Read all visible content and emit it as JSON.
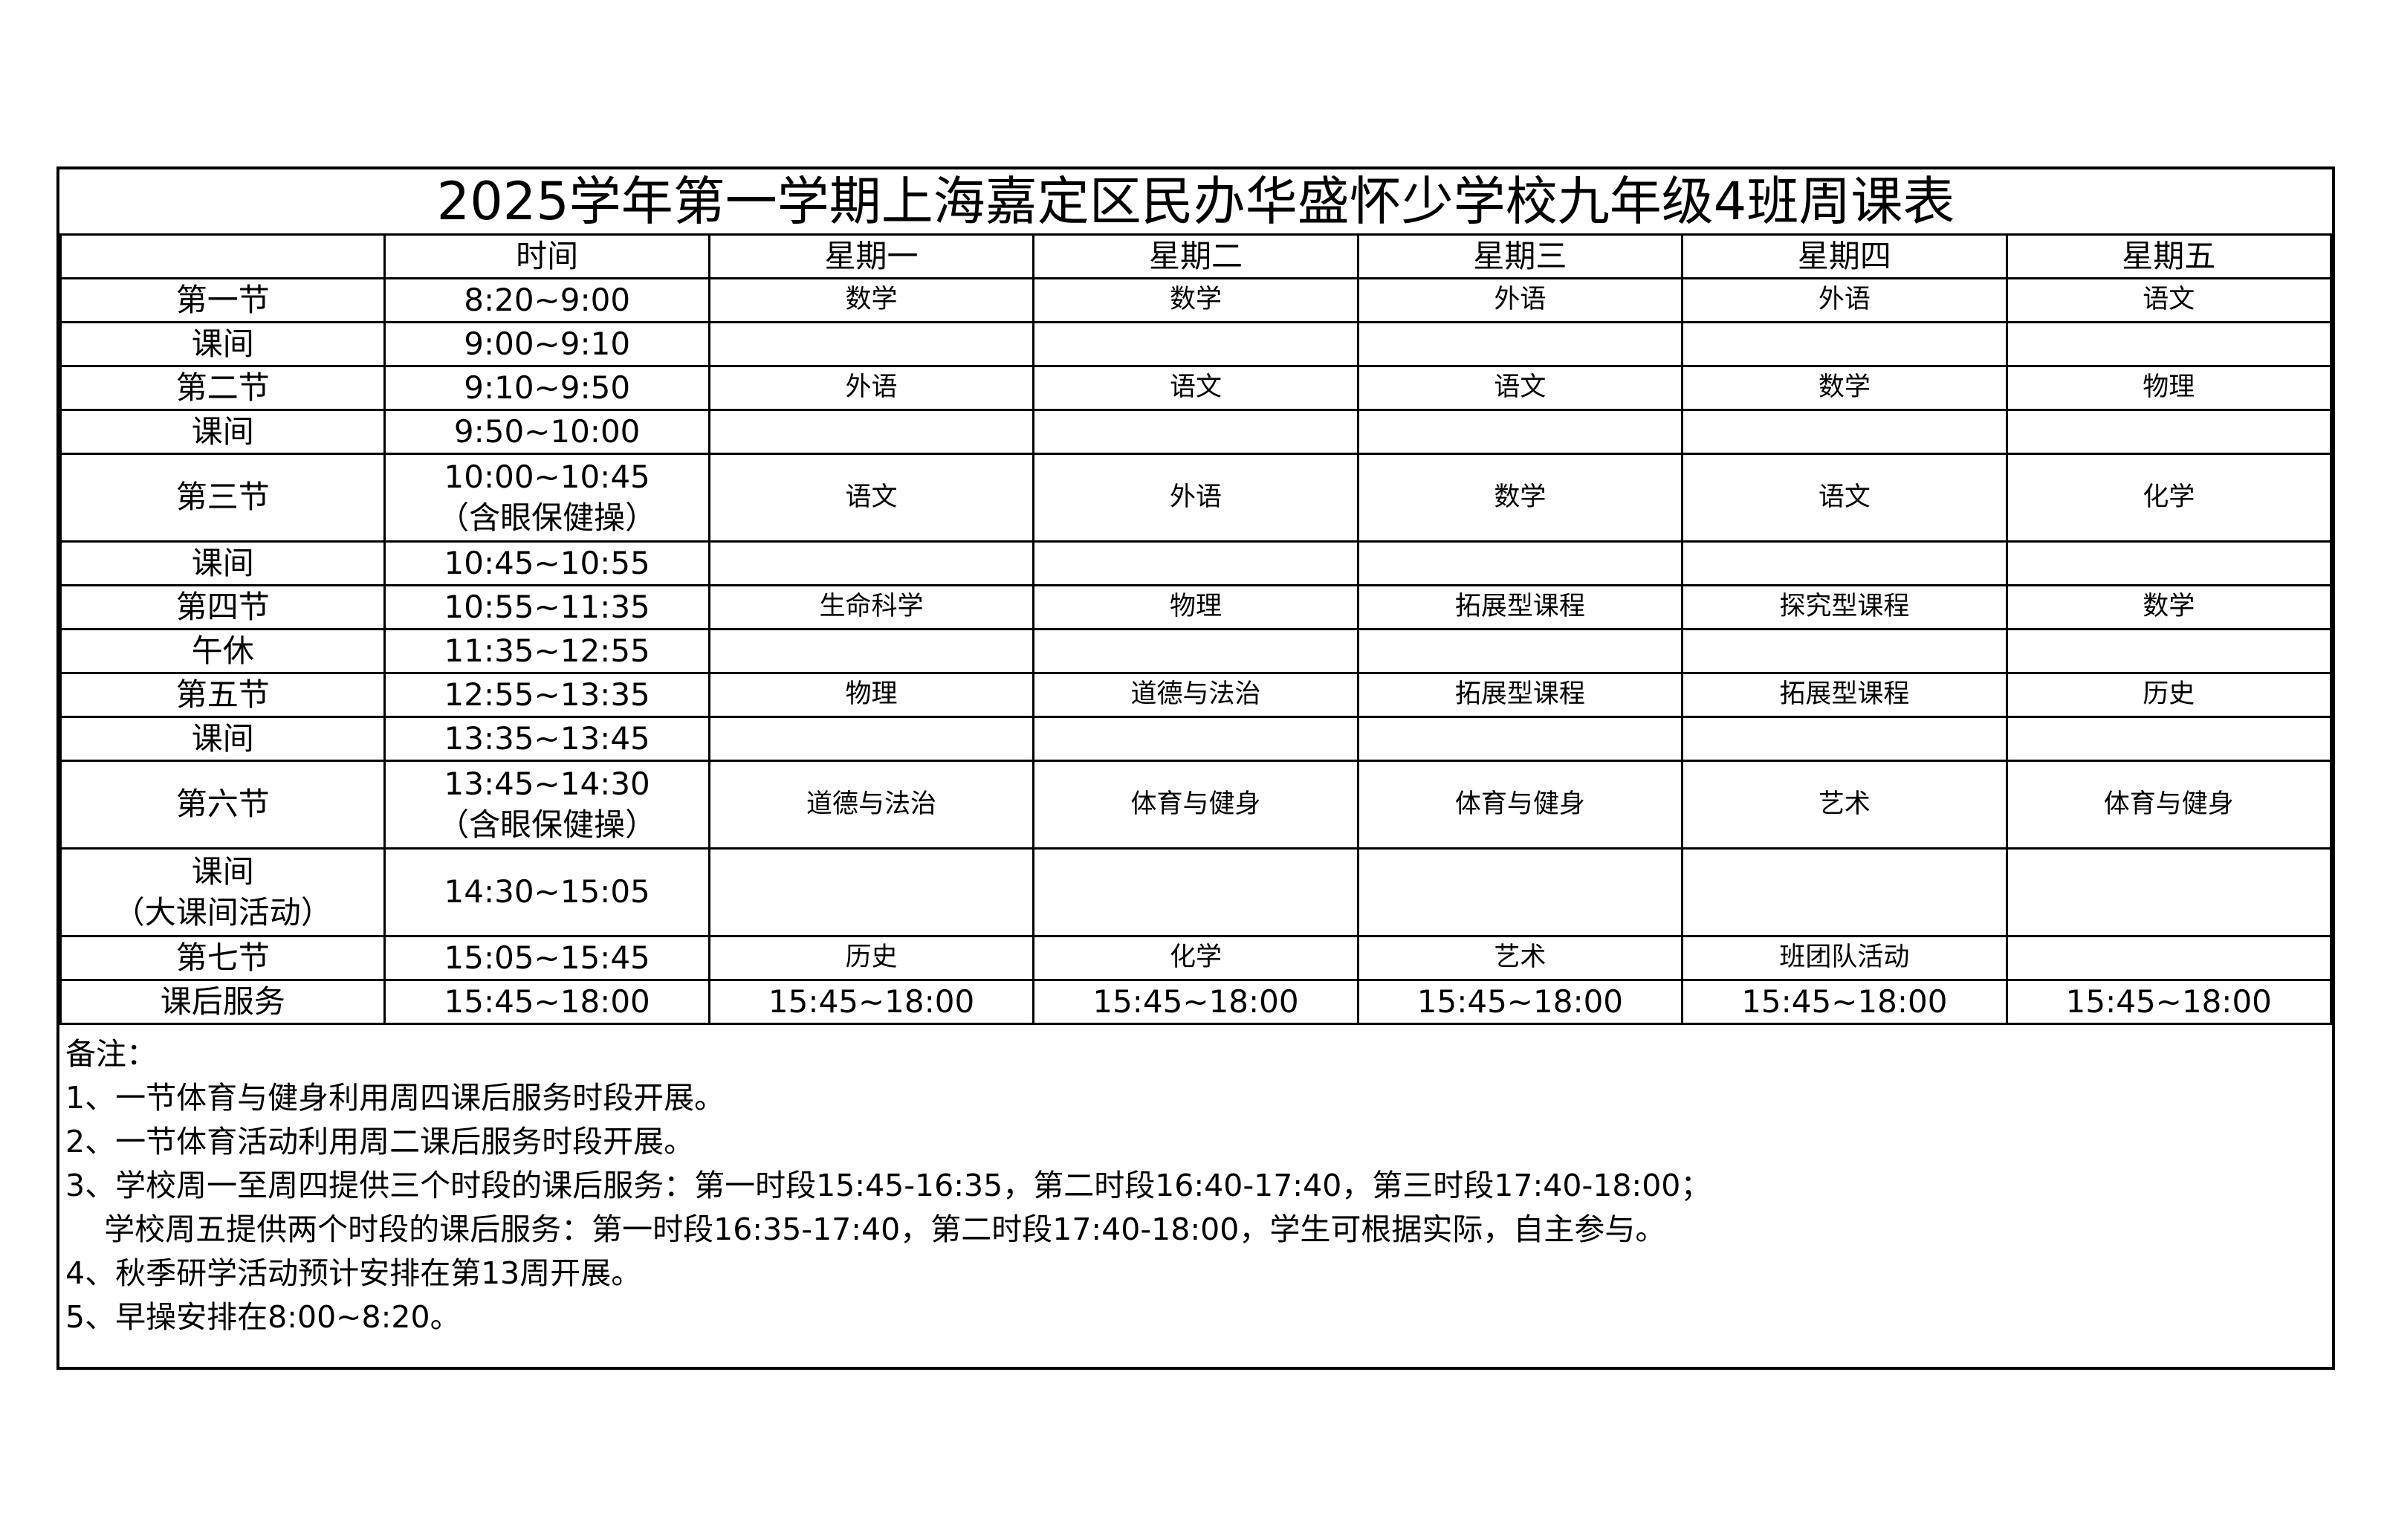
{
  "title": "2025学年第一学期上海嘉定区民办华盛怀少学校九年级4班周课表",
  "headers": [
    "",
    "时间",
    "星期一",
    "星期二",
    "星期三",
    "星期四",
    "星期五"
  ],
  "rows": [
    {
      "label": "第一节",
      "time": "8:20~9:00",
      "cells": [
        "数学",
        "数学",
        "外语",
        "外语",
        "语文"
      ]
    },
    {
      "label": "课间",
      "time": "9:00~9:10",
      "cells": [
        "",
        "",
        "",
        "",
        ""
      ]
    },
    {
      "label": "第二节",
      "time": "9:10~9:50",
      "cells": [
        "外语",
        "语文",
        "语文",
        "数学",
        "物理"
      ]
    },
    {
      "label": "课间",
      "time": "9:50~10:00",
      "cells": [
        "",
        "",
        "",
        "",
        ""
      ]
    },
    {
      "label": "第三节",
      "time": "10:00~10:45",
      "time_note": "（含眼保健操）",
      "cells": [
        "语文",
        "外语",
        "数学",
        "语文",
        "化学"
      ]
    },
    {
      "label": "课间",
      "time": "10:45~10:55",
      "cells": [
        "",
        "",
        "",
        "",
        ""
      ]
    },
    {
      "label": "第四节",
      "time": "10:55~11:35",
      "cells": [
        "生命科学",
        "物理",
        "拓展型课程",
        "探究型课程",
        "数学"
      ]
    },
    {
      "label": "午休",
      "time": "11:35~12:55",
      "cells": [
        "",
        "",
        "",
        "",
        ""
      ]
    },
    {
      "label": "第五节",
      "time": "12:55~13:35",
      "cells": [
        "物理",
        "道德与法治",
        "拓展型课程",
        "拓展型课程",
        "历史"
      ]
    },
    {
      "label": "课间",
      "time": "13:35~13:45",
      "cells": [
        "",
        "",
        "",
        "",
        ""
      ]
    },
    {
      "label": "第六节",
      "time": "13:45~14:30",
      "time_note": "（含眼保健操）",
      "cells": [
        "道德与法治",
        "体育与健身",
        "体育与健身",
        "艺术",
        "体育与健身"
      ]
    },
    {
      "label": "课间",
      "label_note": "（大课间活动）",
      "time": "14:30~15:05",
      "cells": [
        "",
        "",
        "",
        "",
        ""
      ]
    },
    {
      "label": "第七节",
      "time": "15:05~15:45",
      "cells": [
        "历史",
        "化学",
        "艺术",
        "班团队活动",
        ""
      ]
    },
    {
      "label": "课后服务",
      "time": "15:45~18:00",
      "cells": [
        "15:45~18:00",
        "15:45~18:00",
        "15:45~18:00",
        "15:45~18:00",
        "15:45~18:00"
      ]
    }
  ],
  "notes": [
    "备注：",
    "1、一节体育与健身利用周四课后服务时段开展。",
    "2、一节体育活动利用周二课后服务时段开展。",
    "3、学校周一至周四提供三个时段的课后服务：第一时段15:45-16:35，第二时段16:40-17:40，第三时段17:40-18:00；",
    "    学校周五提供两个时段的课后服务：第一时段16:35-17:40，第二时段17:40-18:00，学生可根据实际，自主参与。",
    "4、秋季研学活动预计安排在第13周开展。",
    "5、早操安排在8:00~8:20。"
  ]
}
